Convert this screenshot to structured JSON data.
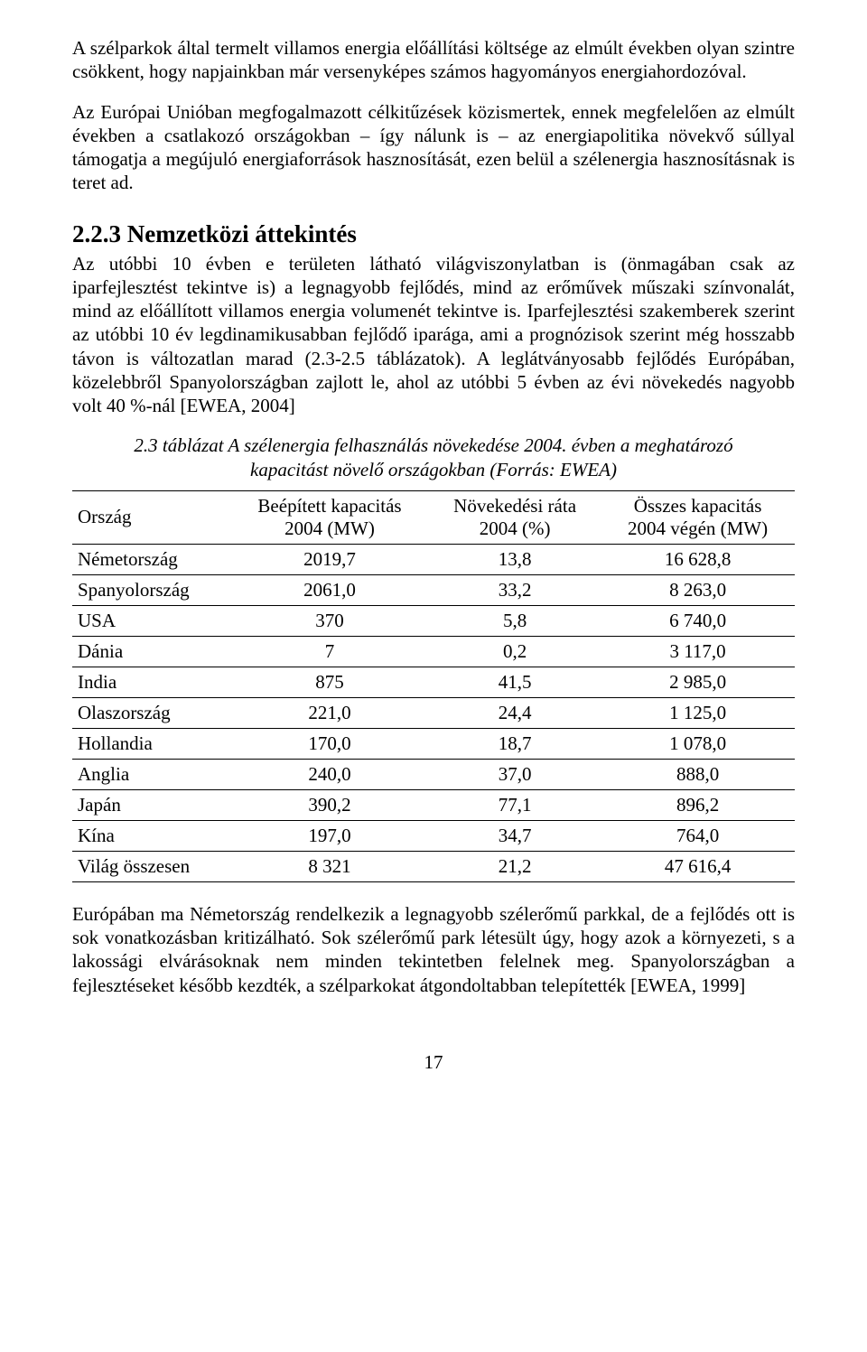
{
  "para1": "A szélparkok által termelt villamos energia előállítási költsége az elmúlt években olyan szintre csökkent, hogy napjainkban már versenyképes számos hagyományos energiahordozóval.",
  "para2": "Az Európai Unióban megfogalmazott célkitűzések közismertek, ennek megfelelően az elmúlt években a csatlakozó országokban – így nálunk is – az energiapolitika növekvő súllyal támogatja a megújuló energiaforrások hasznosítását, ezen belül a szélenergia hasznosításnak is teret ad.",
  "section_heading": "2.2.3  Nemzetközi áttekintés",
  "para3": "Az utóbbi 10 évben e területen látható világviszonylatban is (önmagában csak az iparfejlesztést tekintve is) a legnagyobb fejlődés, mind az erőművek műszaki színvonalát, mind az előállított villamos energia volumenét tekintve is. Iparfejlesztési szakemberek szerint az utóbbi 10 év legdinamikusabban fejlődő iparága, ami a prognózisok szerint még hosszabb távon is változatlan marad (2.3-2.5 táblázatok). A leglátványosabb fejlődés Európában, közelebbről Spanyolországban zajlott le, ahol az utóbbi 5 évben az évi növekedés nagyobb volt 40 %-nál [EWEA, 2004]",
  "table_caption_line1": "2.3 táblázat A szélenergia felhasználás növekedése 2004. évben a meghatározó",
  "table_caption_line2": "kapacitást növelő országokban (Forrás: EWEA)",
  "table": {
    "headers": {
      "country": "Ország",
      "cap_line1": "Beépített kapacitás",
      "cap_line2": "2004 (MW)",
      "rate_line1": "Növekedési ráta",
      "rate_line2": "2004 (%)",
      "total_line1": "Összes kapacitás",
      "total_line2": "2004 végén (MW)"
    },
    "rows": [
      {
        "country": "Németország",
        "cap": "2019,7",
        "rate": "13,8",
        "total": "16 628,8"
      },
      {
        "country": "Spanyolország",
        "cap": "2061,0",
        "rate": "33,2",
        "total": "8 263,0"
      },
      {
        "country": "USA",
        "cap": "370",
        "rate": "5,8",
        "total": "6 740,0"
      },
      {
        "country": "Dánia",
        "cap": "7",
        "rate": "0,2",
        "total": "3 117,0"
      },
      {
        "country": "India",
        "cap": "875",
        "rate": "41,5",
        "total": "2 985,0"
      },
      {
        "country": "Olaszország",
        "cap": "221,0",
        "rate": "24,4",
        "total": "1 125,0"
      },
      {
        "country": "Hollandia",
        "cap": "170,0",
        "rate": "18,7",
        "total": "1 078,0"
      },
      {
        "country": "Anglia",
        "cap": "240,0",
        "rate": "37,0",
        "total": "888,0"
      },
      {
        "country": "Japán",
        "cap": "390,2",
        "rate": "77,1",
        "total": "896,2"
      },
      {
        "country": "Kína",
        "cap": "197,0",
        "rate": "34,7",
        "total": "764,0"
      },
      {
        "country": "Világ összesen",
        "cap": "8 321",
        "rate": "21,2",
        "total": "47 616,4"
      }
    ]
  },
  "para4": "Európában ma Németország rendelkezik a legnagyobb szélerőmű parkkal, de a fejlődés ott is sok vonatkozásban kritizálható. Sok szélerőmű park létesült úgy, hogy azok a környezeti, s a lakossági elvárásoknak nem minden tekintetben felelnek meg. Spanyolországban a fejlesztéseket később kezdték, a szélparkokat átgondoltabban telepítették [EWEA, 1999]",
  "page_number": "17"
}
